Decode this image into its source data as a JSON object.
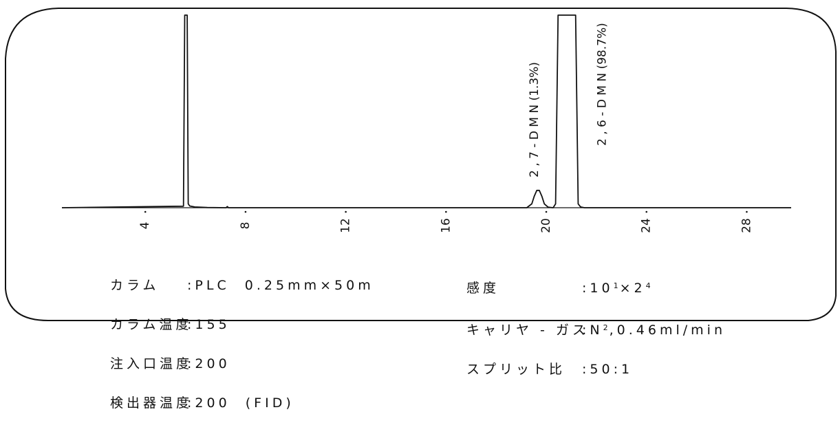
{
  "chart_data": {
    "type": "line",
    "title": "",
    "xlabel": "",
    "ylabel": "",
    "x_ticks": [
      "4",
      "8",
      "12",
      "16",
      "20",
      "24",
      "28"
    ],
    "xlim": [
      0.7,
      29.8
    ],
    "ylim": [
      0,
      100
    ],
    "series": [
      {
        "x": [
          0.7,
          5.55,
          5.6,
          5.63,
          5.66,
          5.7,
          5.74,
          5.8,
          6.0,
          6.5,
          7.25,
          7.3,
          7.35,
          19.25,
          19.45,
          19.55,
          19.65,
          19.75,
          19.85,
          19.95,
          20.1,
          20.3,
          20.4,
          20.5,
          21.2,
          21.3,
          21.4,
          21.55,
          29.8
        ],
        "y": [
          0,
          0.8,
          100,
          100,
          100,
          100,
          2,
          0.9,
          0.4,
          0.1,
          0,
          0.6,
          0,
          0,
          2,
          6,
          9,
          9,
          6,
          2,
          0.3,
          0,
          2,
          100,
          100,
          2,
          0.4,
          0,
          0
        ]
      }
    ],
    "annotations": [
      {
        "text": "2 , 7 - D M N (1.3%)",
        "x": 19.7
      },
      {
        "text": "2 , 6 - D M N (98.7%)",
        "x": 22.4
      }
    ]
  },
  "conditions": {
    "left": [
      {
        "key": "カラム",
        "value": ":PLC  0.25mm×50m"
      },
      {
        "key": "カラム温度",
        "value": ":155"
      },
      {
        "key": "注入口温度",
        "value": ":200"
      },
      {
        "key": "検出器温度",
        "value": ":200  (FID)"
      }
    ],
    "right": [
      {
        "key": "感度",
        "value_parts": [
          ":10",
          "1",
          "×2",
          "4",
          ""
        ]
      },
      {
        "key": "キャリヤ - ガス",
        "value_parts": [
          ":N",
          "2",
          ",0.46ml/min",
          "",
          ""
        ]
      },
      {
        "key": "スプリット比",
        "value_parts": [
          ":50:1",
          "",
          "",
          "",
          ""
        ]
      }
    ]
  }
}
